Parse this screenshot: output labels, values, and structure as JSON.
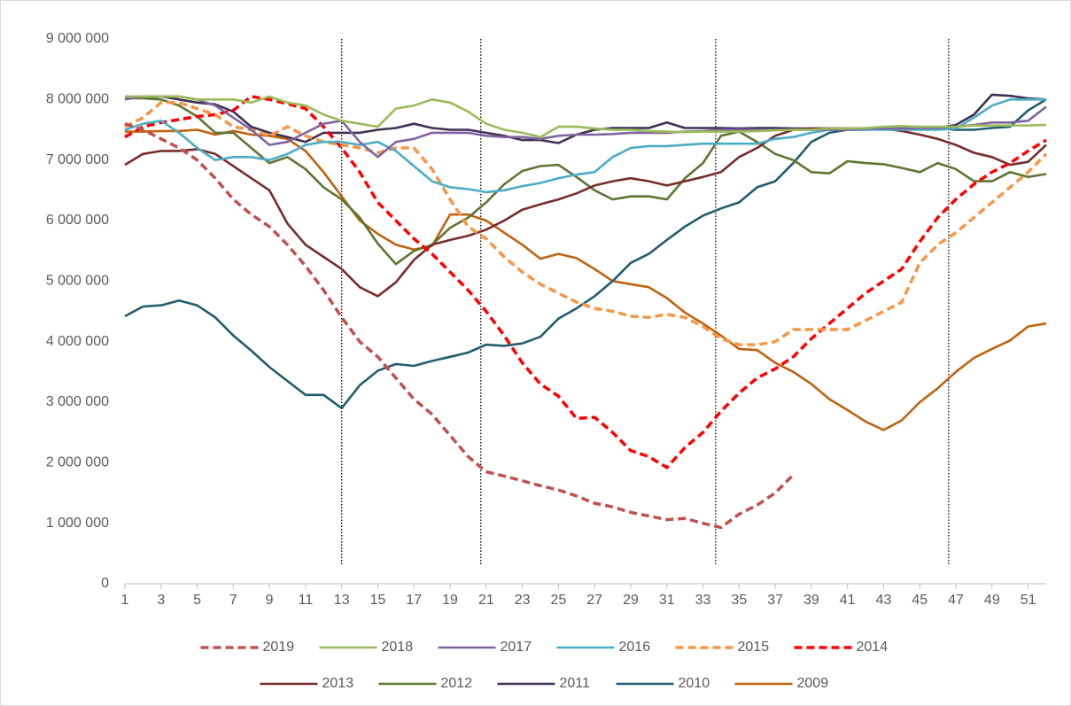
{
  "chart_data": {
    "type": "line",
    "x": [
      1,
      2,
      3,
      4,
      5,
      6,
      7,
      8,
      9,
      10,
      11,
      12,
      13,
      14,
      15,
      16,
      17,
      18,
      19,
      20,
      21,
      22,
      23,
      24,
      25,
      26,
      27,
      28,
      29,
      30,
      31,
      32,
      33,
      34,
      35,
      36,
      37,
      38,
      39,
      40,
      41,
      42,
      43,
      44,
      45,
      46,
      47,
      48,
      49,
      50,
      51,
      52
    ],
    "xlim": [
      1,
      52
    ],
    "xticks": [
      1,
      3,
      5,
      7,
      9,
      11,
      13,
      15,
      17,
      19,
      21,
      23,
      25,
      27,
      29,
      31,
      33,
      35,
      37,
      39,
      41,
      43,
      45,
      47,
      49,
      51
    ],
    "ylim": [
      0,
      9000000
    ],
    "yticks": [
      0,
      {
        "value": 1000000,
        "label": "1 000 000"
      },
      {
        "value": 2000000,
        "label": "2 000 000"
      },
      {
        "value": 3000000,
        "label": "3 000 000"
      },
      {
        "value": 4000000,
        "label": "4 000 000"
      },
      {
        "value": 5000000,
        "label": "5 000 000"
      },
      {
        "value": 6000000,
        "label": "6 000 000"
      },
      {
        "value": 7000000,
        "label": "7 000 000"
      },
      {
        "value": 8000000,
        "label": "8 000 000"
      },
      {
        "value": 9000000,
        "label": "9 000 000"
      }
    ],
    "vlines": [
      13,
      20.7,
      33.7,
      46.6
    ],
    "grid": false,
    "legend": "bottom",
    "series": [
      {
        "name": "2019",
        "color": "#c0504d",
        "dashed": true,
        "values": [
          7600000,
          7500000,
          7350000,
          7200000,
          7000000,
          6700000,
          6350000,
          6100000,
          5900000,
          5600000,
          5250000,
          4850000,
          4400000,
          4000000,
          3750000,
          3400000,
          3050000,
          2800000,
          2450000,
          2100000,
          1850000,
          1780000,
          1700000,
          1620000,
          1550000,
          1450000,
          1330000,
          1270000,
          1180000,
          1120000,
          1060000,
          1080000,
          1000000,
          930000,
          1150000,
          1300000,
          1500000,
          1800000,
          null,
          null,
          null,
          null,
          null,
          null,
          null,
          null,
          null,
          null,
          null,
          null,
          null,
          null
        ]
      },
      {
        "name": "2018",
        "color": "#9bbb59",
        "dashed": false,
        "values": [
          8050000,
          8050000,
          8050000,
          8050000,
          8000000,
          8000000,
          8000000,
          7950000,
          8050000,
          7950000,
          7900000,
          7750000,
          7650000,
          7600000,
          7550000,
          7850000,
          7900000,
          8000000,
          7950000,
          7800000,
          7600000,
          7500000,
          7450000,
          7380000,
          7550000,
          7550000,
          7520000,
          7500000,
          7500000,
          7480000,
          7470000,
          7460000,
          7470000,
          7470000,
          7470000,
          7480000,
          7490000,
          7500000,
          7500000,
          7520000,
          7520000,
          7530000,
          7550000,
          7560000,
          7550000,
          7550000,
          7550000,
          7570000,
          7570000,
          7570000,
          7570000,
          7580000
        ]
      },
      {
        "name": "2017",
        "color": "#8064a2",
        "dashed": false,
        "values": [
          8000000,
          8050000,
          8050000,
          8050000,
          8000000,
          7900000,
          7700000,
          7500000,
          7250000,
          7300000,
          7450000,
          7600000,
          7650000,
          7300000,
          7050000,
          7300000,
          7350000,
          7450000,
          7450000,
          7450000,
          7400000,
          7380000,
          7380000,
          7350000,
          7400000,
          7420000,
          7420000,
          7430000,
          7450000,
          7450000,
          7450000,
          7470000,
          7480000,
          7500000,
          7500000,
          7500000,
          7500000,
          7500000,
          7500000,
          7500000,
          7500000,
          7520000,
          7520000,
          7520000,
          7530000,
          7530000,
          7550000,
          7580000,
          7620000,
          7620000,
          7650000,
          7880000
        ]
      },
      {
        "name": "2016",
        "color": "#4bacc6",
        "dashed": false,
        "values": [
          7500000,
          7600000,
          7650000,
          7450000,
          7200000,
          7000000,
          7050000,
          7050000,
          7000000,
          7100000,
          7250000,
          7300000,
          7300000,
          7250000,
          7300000,
          7150000,
          6900000,
          6650000,
          6550000,
          6520000,
          6470000,
          6500000,
          6570000,
          6620000,
          6700000,
          6760000,
          6800000,
          7050000,
          7200000,
          7230000,
          7230000,
          7250000,
          7270000,
          7270000,
          7270000,
          7270000,
          7350000,
          7380000,
          7450000,
          7500000,
          7500000,
          7500000,
          7500000,
          7500000,
          7500000,
          7500000,
          7520000,
          7700000,
          7900000,
          8000000,
          8000000,
          8000000
        ]
      },
      {
        "name": "2015",
        "color": "#f79646",
        "dashed": true,
        "values": [
          7550000,
          7700000,
          7950000,
          7950000,
          7850000,
          7750000,
          7550000,
          7500000,
          7400000,
          7550000,
          7400000,
          7300000,
          7250000,
          7200000,
          7120000,
          7200000,
          7200000,
          6850000,
          6350000,
          5900000,
          5700000,
          5400000,
          5150000,
          4950000,
          4800000,
          4650000,
          4550000,
          4500000,
          4420000,
          4400000,
          4450000,
          4400000,
          4250000,
          4050000,
          3950000,
          3950000,
          4000000,
          4200000,
          4200000,
          4200000,
          4200000,
          4350000,
          4500000,
          4650000,
          5300000,
          5600000,
          5800000,
          6050000,
          6300000,
          6550000,
          6800000,
          7100000
        ]
      },
      {
        "name": "2014",
        "color": "#ff0000",
        "dashed": true,
        "values": [
          7380000,
          7550000,
          7620000,
          7670000,
          7720000,
          7750000,
          7820000,
          8050000,
          8000000,
          7930000,
          7850000,
          7550000,
          7200000,
          6800000,
          6300000,
          6000000,
          5700000,
          5450000,
          5150000,
          4850000,
          4500000,
          4100000,
          3650000,
          3300000,
          3100000,
          2730000,
          2750000,
          2500000,
          2200000,
          2100000,
          1920000,
          2250000,
          2500000,
          2850000,
          3150000,
          3400000,
          3550000,
          3750000,
          4050000,
          4300000,
          4550000,
          4800000,
          5000000,
          5200000,
          5650000,
          6050000,
          6350000,
          6600000,
          6800000,
          6950000,
          7150000,
          7330000
        ]
      },
      {
        "name": "2013",
        "color": "#772c2a",
        "dashed": false,
        "values": [
          6920000,
          7100000,
          7150000,
          7150000,
          7180000,
          7100000,
          6900000,
          6700000,
          6500000,
          5950000,
          5600000,
          5400000,
          5200000,
          4900000,
          4750000,
          4980000,
          5350000,
          5600000,
          5680000,
          5750000,
          5850000,
          6000000,
          6180000,
          6270000,
          6350000,
          6450000,
          6580000,
          6650000,
          6700000,
          6650000,
          6580000,
          6650000,
          6720000,
          6800000,
          7050000,
          7200000,
          7400000,
          7500000,
          7520000,
          7520000,
          7520000,
          7520000,
          7520000,
          7480000,
          7420000,
          7350000,
          7250000,
          7120000,
          7050000,
          6920000,
          6970000,
          7250000
        ]
      },
      {
        "name": "2012",
        "color": "#5f7530",
        "dashed": false,
        "values": [
          8020000,
          8020000,
          8000000,
          7900000,
          7720000,
          7450000,
          7450000,
          7200000,
          6950000,
          7050000,
          6850000,
          6550000,
          6350000,
          6050000,
          5620000,
          5280000,
          5500000,
          5600000,
          5880000,
          6050000,
          6300000,
          6600000,
          6820000,
          6900000,
          6920000,
          6720000,
          6500000,
          6350000,
          6400000,
          6400000,
          6350000,
          6700000,
          6950000,
          7400000,
          7470000,
          7300000,
          7100000,
          7000000,
          6800000,
          6780000,
          6980000,
          6950000,
          6930000,
          6870000,
          6800000,
          6950000,
          6850000,
          6650000,
          6650000,
          6800000,
          6720000,
          6770000
        ]
      },
      {
        "name": "2011",
        "color": "#403152",
        "dashed": false,
        "values": [
          8050000,
          8030000,
          8050000,
          8000000,
          7950000,
          7920000,
          7800000,
          7550000,
          7450000,
          7380000,
          7300000,
          7450000,
          7450000,
          7450000,
          7500000,
          7530000,
          7600000,
          7530000,
          7500000,
          7500000,
          7450000,
          7400000,
          7330000,
          7330000,
          7280000,
          7420000,
          7500000,
          7530000,
          7530000,
          7530000,
          7620000,
          7530000,
          7530000,
          7530000,
          7520000,
          7530000,
          7530000,
          7520000,
          7520000,
          7520000,
          7520000,
          7520000,
          7520000,
          7530000,
          7530000,
          7530000,
          7580000,
          7750000,
          8080000,
          8060000,
          8020000,
          8000000
        ]
      },
      {
        "name": "2010",
        "color": "#215e6e",
        "dashed": false,
        "values": [
          4420000,
          4580000,
          4600000,
          4680000,
          4600000,
          4400000,
          4100000,
          3850000,
          3580000,
          3350000,
          3120000,
          3120000,
          2900000,
          3280000,
          3520000,
          3630000,
          3600000,
          3680000,
          3750000,
          3820000,
          3950000,
          3930000,
          3970000,
          4080000,
          4380000,
          4550000,
          4750000,
          5000000,
          5300000,
          5450000,
          5680000,
          5900000,
          6080000,
          6200000,
          6300000,
          6550000,
          6650000,
          6950000,
          7300000,
          7450000,
          7500000,
          7500000,
          7520000,
          7520000,
          7520000,
          7520000,
          7500000,
          7500000,
          7530000,
          7550000,
          7820000,
          8000000
        ]
      },
      {
        "name": "2009",
        "color": "#bf630d",
        "dashed": false,
        "values": [
          7470000,
          7470000,
          7480000,
          7480000,
          7500000,
          7420000,
          7480000,
          7420000,
          7400000,
          7350000,
          7150000,
          6800000,
          6400000,
          6000000,
          5780000,
          5600000,
          5520000,
          5580000,
          6100000,
          6100000,
          6000000,
          5800000,
          5600000,
          5370000,
          5450000,
          5380000,
          5200000,
          5000000,
          4950000,
          4900000,
          4720000,
          4480000,
          4300000,
          4100000,
          3880000,
          3860000,
          3650000,
          3500000,
          3300000,
          3050000,
          2870000,
          2680000,
          2540000,
          2700000,
          3000000,
          3230000,
          3500000,
          3730000,
          3880000,
          4020000,
          4250000,
          4300000
        ]
      }
    ]
  }
}
